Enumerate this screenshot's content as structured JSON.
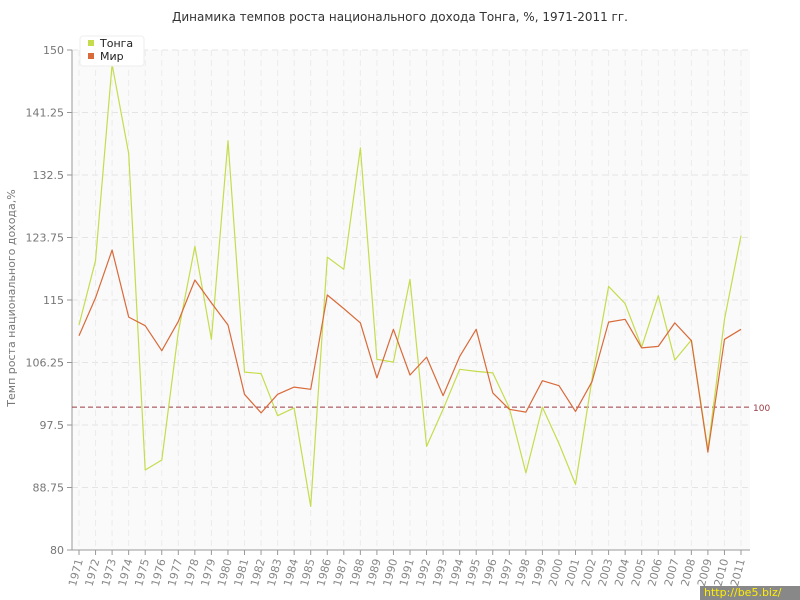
{
  "chart_data": {
    "type": "line",
    "title": "Динамика темпов роста национального дохода Тонга, %, 1971-2011 гг.",
    "xlabel": "",
    "ylabel": "Темп роста национального дохода,%",
    "ylim": [
      80,
      150
    ],
    "yticks": [
      "80",
      "88.75",
      "97.5",
      "106.25",
      "115",
      "123.75",
      "132.5",
      "141.25",
      "150"
    ],
    "grid": true,
    "legend": "top-left",
    "reference_line": {
      "value": 100,
      "label": "100",
      "color": "#9b3a45"
    },
    "x": [
      "1971",
      "1972",
      "1973",
      "1974",
      "1975",
      "1976",
      "1977",
      "1978",
      "1979",
      "1980",
      "1981",
      "1982",
      "1983",
      "1984",
      "1985",
      "1986",
      "1987",
      "1988",
      "1989",
      "1990",
      "1991",
      "1992",
      "1993",
      "1994",
      "1995",
      "1996",
      "1997",
      "1998",
      "1999",
      "2000",
      "2001",
      "2002",
      "2003",
      "2004",
      "2005",
      "2006",
      "2007",
      "2008",
      "2009",
      "2010",
      "2011"
    ],
    "series": [
      {
        "name": "Тонга",
        "color": "#c6dc4d",
        "values": [
          111.5,
          120.5,
          148,
          135.5,
          91.2,
          92.6,
          110.5,
          122.5,
          109.5,
          137.3,
          104.9,
          104.7,
          98.8,
          99.9,
          86.1,
          121.0,
          119.3,
          136.3,
          106.7,
          106.3,
          117.9,
          94.5,
          99.7,
          105.3,
          105.0,
          104.8,
          99.9,
          90.8,
          100.0,
          94.9,
          89.2,
          104.0,
          116.9,
          114.5,
          108.4,
          115.6,
          106.6,
          109.4,
          94.1,
          112.3,
          124.0
        ]
      },
      {
        "name": "Мир",
        "color": "#d96a3a",
        "values": [
          110.0,
          115.3,
          122.0,
          112.6,
          111.4,
          107.9,
          112.0,
          117.8,
          114.6,
          111.5,
          101.8,
          99.2,
          101.8,
          102.8,
          102.5,
          115.7,
          113.8,
          111.8,
          104.1,
          110.9,
          104.5,
          107.0,
          101.6,
          107.1,
          110.9,
          102.0,
          99.7,
          99.3,
          103.7,
          103.0,
          99.4,
          103.6,
          111.9,
          112.3,
          108.3,
          108.5,
          111.8,
          109.3,
          93.7,
          109.5,
          110.9
        ]
      }
    ]
  },
  "watermark": "http://be5.biz/"
}
